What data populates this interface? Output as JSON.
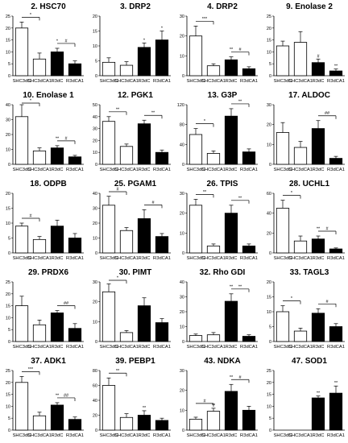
{
  "categories": [
    "SHC3dC",
    "SHC3dCA1",
    "R3dC",
    "R3dCA1"
  ],
  "bar_fill": [
    "#ffffff",
    "#ffffff",
    "#000000",
    "#000000"
  ],
  "chart_data": [
    {
      "type": "bar",
      "title": "2. HSC70",
      "ylim": [
        0,
        25
      ],
      "yticks": [
        0,
        5,
        10,
        15,
        20,
        25
      ],
      "values": [
        20,
        7,
        10,
        5
      ],
      "errors": [
        2.5,
        2.5,
        1.5,
        1.2
      ],
      "sig": [
        {
          "a": 0,
          "b": 1,
          "label": "*"
        },
        {
          "a": 2,
          "b": 3,
          "label": "#",
          "star": "*"
        }
      ]
    },
    {
      "type": "bar",
      "title": "3. DRP2",
      "ylim": [
        0,
        20
      ],
      "yticks": [
        0,
        5,
        10,
        15,
        20
      ],
      "values": [
        4.5,
        3.5,
        9.5,
        12
      ],
      "errors": [
        1.5,
        1.2,
        1.5,
        3
      ],
      "marks": [
        {
          "i": 2,
          "label": "*"
        },
        {
          "i": 3,
          "label": "*"
        }
      ]
    },
    {
      "type": "bar",
      "title": "4. DRP2",
      "ylim": [
        0,
        30
      ],
      "yticks": [
        0,
        10,
        20,
        30
      ],
      "values": [
        20,
        5,
        8,
        3.5
      ],
      "errors": [
        5,
        1,
        1.5,
        1
      ],
      "sig": [
        {
          "a": 0,
          "b": 1,
          "label": "***"
        },
        {
          "a": 2,
          "b": 3,
          "label": "#",
          "star": "**"
        }
      ]
    },
    {
      "type": "bar",
      "title": "9. Enolase 2",
      "ylim": [
        0,
        25
      ],
      "yticks": [
        0,
        5,
        10,
        15,
        20,
        25
      ],
      "values": [
        12.5,
        14,
        5.5,
        2
      ],
      "errors": [
        2,
        4.5,
        1.5,
        0.8
      ],
      "marks": [
        {
          "i": 2,
          "label": "#"
        },
        {
          "i": 3,
          "label": "**"
        }
      ]
    },
    {
      "type": "bar",
      "title": "10. Enolase 1",
      "ylim": [
        0,
        40
      ],
      "yticks": [
        0,
        10,
        20,
        30,
        40
      ],
      "values": [
        32,
        9,
        11,
        5
      ],
      "errors": [
        8,
        2,
        1.5,
        1
      ],
      "sig": [
        {
          "a": 0,
          "b": 1,
          "label": "*"
        },
        {
          "a": 2,
          "b": 3,
          "label": "#",
          "star": "**"
        }
      ]
    },
    {
      "type": "bar",
      "title": "12. PGK1",
      "ylim": [
        0,
        50
      ],
      "yticks": [
        0,
        10,
        20,
        30,
        40,
        50
      ],
      "values": [
        36,
        15,
        34,
        10
      ],
      "errors": [
        4,
        2,
        3,
        2
      ],
      "sig": [
        {
          "a": 0,
          "b": 1,
          "label": "**"
        },
        {
          "a": 2,
          "b": 3,
          "label": "**"
        }
      ]
    },
    {
      "type": "bar",
      "title": "13. G3P",
      "ylim": [
        0,
        120
      ],
      "yticks": [
        0,
        40,
        80,
        120
      ],
      "values": [
        60,
        22,
        97,
        25
      ],
      "errors": [
        12,
        5,
        15,
        6
      ],
      "sig": [
        {
          "a": 0,
          "b": 1,
          "label": "*"
        },
        {
          "a": 2,
          "b": 3,
          "label": "**"
        }
      ]
    },
    {
      "type": "bar",
      "title": "17. ALDOC",
      "ylim": [
        0,
        30
      ],
      "yticks": [
        0,
        10,
        20,
        30
      ],
      "values": [
        16,
        8.5,
        18,
        3
      ],
      "errors": [
        5,
        3,
        4,
        1
      ],
      "sig": [
        {
          "a": 2,
          "b": 3,
          "label": "##"
        }
      ]
    },
    {
      "type": "bar",
      "title": "18. ODPB",
      "ylim": [
        0,
        20
      ],
      "yticks": [
        0,
        5,
        10,
        15,
        20
      ],
      "values": [
        9,
        4.5,
        9,
        5
      ],
      "errors": [
        1,
        1,
        2,
        1.5
      ],
      "sig": [
        {
          "a": 0,
          "b": 1,
          "label": "#"
        }
      ]
    },
    {
      "type": "bar",
      "title": "25. PGAM1",
      "ylim": [
        0,
        40
      ],
      "yticks": [
        0,
        10,
        20,
        30,
        40
      ],
      "values": [
        32,
        15,
        23,
        11
      ],
      "errors": [
        6,
        2,
        6,
        2
      ],
      "sig": [
        {
          "a": 0,
          "b": 1,
          "label": "#"
        },
        {
          "a": 2,
          "b": 3,
          "label": "#"
        }
      ]
    },
    {
      "type": "bar",
      "title": "26. TPIS",
      "ylim": [
        0,
        30
      ],
      "yticks": [
        0,
        10,
        20,
        30
      ],
      "values": [
        24,
        3.5,
        20,
        3.5
      ],
      "errors": [
        3,
        1,
        4,
        1
      ],
      "sig": [
        {
          "a": 0,
          "b": 1,
          "label": "**"
        },
        {
          "a": 2,
          "b": 3,
          "label": "**"
        }
      ]
    },
    {
      "type": "bar",
      "title": "28. UCHL1",
      "ylim": [
        0,
        60
      ],
      "yticks": [
        0,
        20,
        40,
        60
      ],
      "values": [
        45,
        12,
        14,
        4
      ],
      "errors": [
        8,
        5,
        3,
        1
      ],
      "sig": [
        {
          "a": 0,
          "b": 1,
          "label": "*"
        },
        {
          "a": 2,
          "b": 3,
          "label": "#",
          "star": "**"
        }
      ]
    },
    {
      "type": "bar",
      "title": "29. PRDX6",
      "ylim": [
        0,
        25
      ],
      "yticks": [
        0,
        5,
        10,
        15,
        20,
        25
      ],
      "values": [
        15,
        7,
        12,
        5.5
      ],
      "errors": [
        4,
        2,
        1,
        2
      ],
      "sig": [
        {
          "a": 2,
          "b": 3,
          "label": "##"
        }
      ]
    },
    {
      "type": "bar",
      "title": "30. PIMT",
      "ylim": [
        0,
        30
      ],
      "yticks": [
        0,
        10,
        20,
        30
      ],
      "values": [
        25,
        4.5,
        18,
        9.5
      ],
      "errors": [
        4,
        1,
        4,
        2
      ],
      "sig": [
        {
          "a": 0,
          "b": 1,
          "label": "*"
        }
      ]
    },
    {
      "type": "bar",
      "title": "32. Rho GDI",
      "ylim": [
        0,
        40
      ],
      "yticks": [
        0,
        10,
        20,
        30,
        40
      ],
      "values": [
        4,
        4.5,
        27,
        3.5
      ],
      "errors": [
        1,
        1.5,
        5,
        1
      ],
      "sig": [
        {
          "a": 2,
          "b": 3,
          "label": "**",
          "star": "**"
        }
      ]
    },
    {
      "type": "bar",
      "title": "33. TAGL3",
      "ylim": [
        0,
        20
      ],
      "yticks": [
        0,
        5,
        10,
        15,
        20
      ],
      "values": [
        10,
        3.5,
        9.5,
        5
      ],
      "errors": [
        2,
        1,
        1.5,
        1
      ],
      "sig": [
        {
          "a": 0,
          "b": 1,
          "label": "*"
        },
        {
          "a": 2,
          "b": 3,
          "label": "#"
        }
      ]
    },
    {
      "type": "bar",
      "title": "37. ADK1",
      "ylim": [
        0,
        25
      ],
      "yticks": [
        0,
        5,
        10,
        15,
        20,
        25
      ],
      "values": [
        20,
        6,
        10.5,
        4.5
      ],
      "errors": [
        2.5,
        1.5,
        1,
        1
      ],
      "sig": [
        {
          "a": 0,
          "b": 1,
          "label": "***"
        },
        {
          "a": 2,
          "b": 3,
          "label": "##",
          "star": "**"
        }
      ]
    },
    {
      "type": "bar",
      "title": "39. PEBP1",
      "ylim": [
        0,
        80
      ],
      "yticks": [
        0,
        20,
        40,
        60,
        80
      ],
      "values": [
        60,
        17,
        20,
        13
      ],
      "errors": [
        10,
        5,
        6,
        3
      ],
      "sig": [
        {
          "a": 0,
          "b": 1,
          "label": "**"
        }
      ],
      "marks": [
        {
          "i": 2,
          "label": "**"
        }
      ]
    },
    {
      "type": "bar",
      "title": "43. NDKA",
      "ylim": [
        0,
        30
      ],
      "yticks": [
        0,
        10,
        20,
        30
      ],
      "values": [
        5.5,
        9.5,
        19.5,
        10
      ],
      "errors": [
        1,
        1.5,
        3.5,
        2
      ],
      "sig": [
        {
          "a": 0,
          "b": 1,
          "label": "#"
        },
        {
          "a": 2,
          "b": 3,
          "label": "#",
          "star": "**"
        }
      ],
      "marks": [
        {
          "i": 1,
          "label": "**"
        }
      ]
    },
    {
      "type": "bar",
      "title": "47. SOD1",
      "ylim": [
        0,
        25
      ],
      "yticks": [
        0,
        5,
        10,
        15,
        20,
        25
      ],
      "values": [
        0,
        0,
        13.5,
        15.5
      ],
      "errors": [
        0,
        0,
        0.8,
        3
      ],
      "marks": [
        {
          "i": 2,
          "label": "**"
        },
        {
          "i": 3,
          "label": "**"
        }
      ]
    }
  ]
}
